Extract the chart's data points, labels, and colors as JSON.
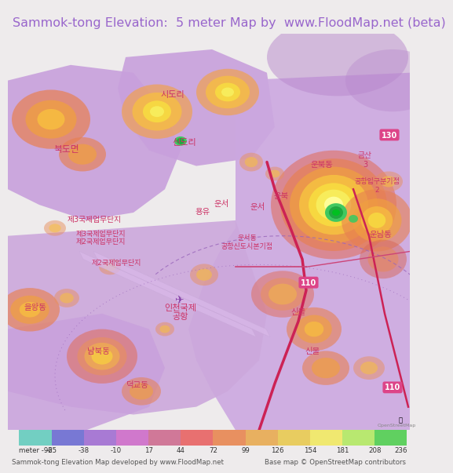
{
  "title": "Sammok-tong Elevation:  5 meter Map by  www.FloodMap.net (beta)",
  "title_color": "#9966cc",
  "title_bg": "#eeebec",
  "title_fontsize": 11.5,
  "colorbar_values": [
    -92,
    -65,
    -38,
    -10,
    17,
    44,
    72,
    99,
    126,
    154,
    181,
    208,
    236
  ],
  "colorbar_colors": [
    "#72cfc2",
    "#7878d4",
    "#a87ad4",
    "#d078cc",
    "#d07898",
    "#e87070",
    "#e89060",
    "#e8b060",
    "#e8cc60",
    "#f0e870",
    "#b8e870",
    "#60d060"
  ],
  "footer_text_left": "Sammok-tong Elevation Map developed by www.FloodMap.net",
  "footer_text_right": "Base map © OpenStreetMap contributors",
  "map_bg": "#c090d8",
  "land_color": "#d0a8e0",
  "airport_color": "#d8b4e8",
  "elev_low": "#e08080",
  "elev_mid": "#f0b040",
  "elev_high": "#f8e040",
  "elev_peak": "#f8f040",
  "label_color": "#cc3366",
  "road_color": "#cc3366",
  "route_color": "#dd4488",
  "dashed_color": "#9966bb"
}
